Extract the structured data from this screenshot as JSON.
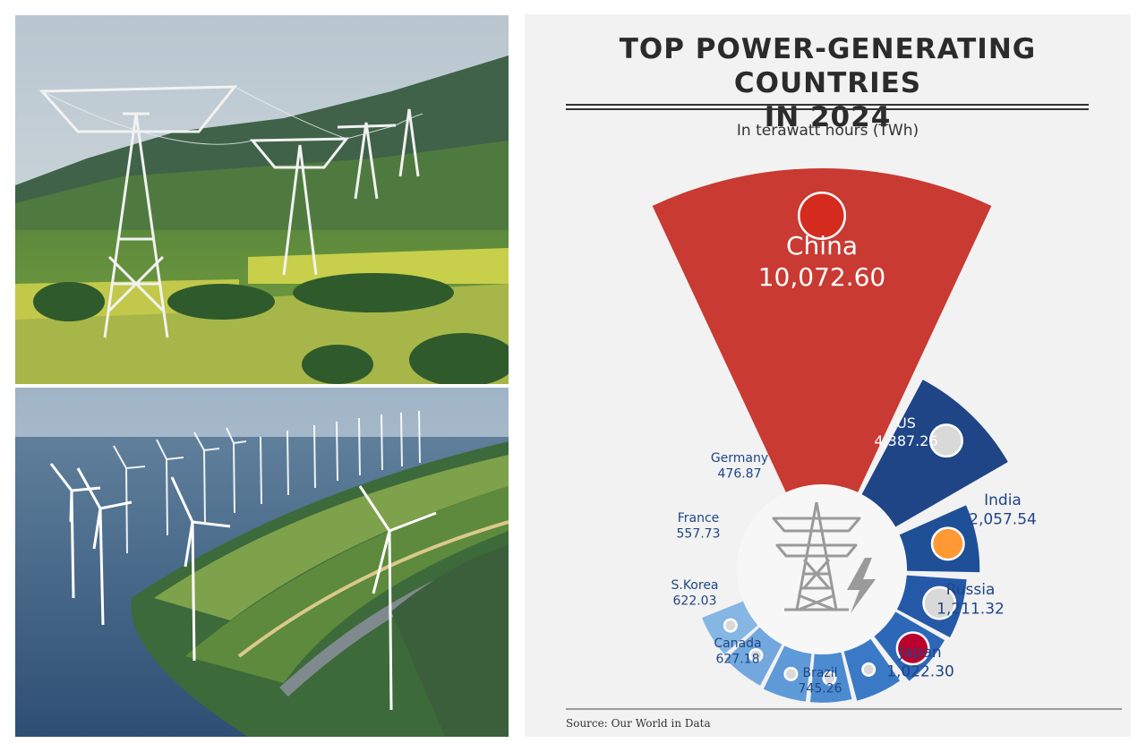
{
  "photos": [
    {
      "name": "transmission-towers-photo",
      "subject": "power transmission towers over green hills"
    },
    {
      "name": "wind-turbines-photo",
      "subject": "offshore wind turbines beside a coastal highway"
    }
  ],
  "chart_data": {
    "type": "radial-bar",
    "title_lines": [
      "TOP POWER-GENERATING COUNTRIES",
      "IN 2024"
    ],
    "subtitle": "In terawatt hours (TWh)",
    "source": "Source: Our World in Data",
    "unit": "TWh",
    "countries": [
      {
        "name": "China",
        "value": 10072.6,
        "label": "10,072.60",
        "color": "#c93a32",
        "flag": "china-flag"
      },
      {
        "name": "US",
        "value": 4387.26,
        "label": "4,387.26",
        "color": "#1f4587",
        "flag": "us-flag"
      },
      {
        "name": "India",
        "value": 2057.54,
        "label": "2,057.54",
        "color": "#1f4f96",
        "flag": "india-flag"
      },
      {
        "name": "Russia",
        "value": 1211.32,
        "label": "1,211.32",
        "color": "#2559a8",
        "flag": "russia-flag"
      },
      {
        "name": "Japan",
        "value": 1022.3,
        "label": "1,022.30",
        "color": "#2d67b8",
        "flag": "japan-flag"
      },
      {
        "name": "Brazil",
        "value": 745.26,
        "label": "745.26",
        "color": "#3a79c6",
        "flag": "brazil-flag"
      },
      {
        "name": "Canada",
        "value": 627.18,
        "label": "627.18",
        "color": "#4d8bd0",
        "flag": "canada-flag"
      },
      {
        "name": "S.Korea",
        "value": 622.03,
        "label": "622.03",
        "color": "#5f9ad8",
        "flag": "south-korea-flag"
      },
      {
        "name": "France",
        "value": 557.73,
        "label": "557.73",
        "color": "#72a8de",
        "flag": "france-flag"
      },
      {
        "name": "Germany",
        "value": 476.87,
        "label": "476.87",
        "color": "#86b6e4",
        "flag": "germany-flag"
      }
    ],
    "center_icon": "power-tower-lightning-icon"
  }
}
